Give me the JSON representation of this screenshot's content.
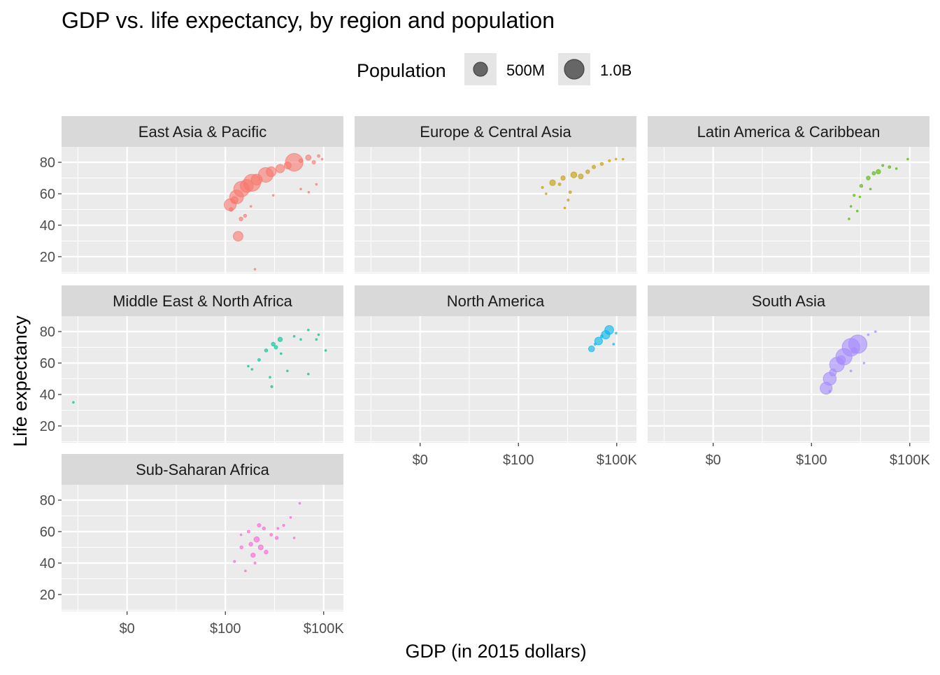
{
  "chart_data": {
    "type": "scatter",
    "title": "GDP vs. life expectancy, by region and population",
    "xlabel": "GDP (in 2015 dollars)",
    "ylabel": "Life expectancy",
    "x_scale": "log10",
    "x_ticks": [
      {
        "value": 0.1,
        "label": "$0"
      },
      {
        "value": 100,
        "label": "$100"
      },
      {
        "value": 100000,
        "label": "$100K"
      }
    ],
    "y_ticks": [
      {
        "value": 20,
        "label": "20"
      },
      {
        "value": 40,
        "label": "40"
      },
      {
        "value": 60,
        "label": "60"
      },
      {
        "value": 80,
        "label": "80"
      }
    ],
    "xlim": [
      0.001,
      400000
    ],
    "ylim": [
      9.3,
      89.8
    ],
    "grid": true,
    "legend": {
      "title": "Population",
      "position": "top",
      "entries": [
        {
          "label": "500M",
          "value": 500
        },
        {
          "label": "1.0B",
          "value": 1000
        }
      ]
    },
    "point_fields": [
      "gdp",
      "life_expectancy",
      "population_millions"
    ],
    "facets": [
      {
        "name": "East Asia & Pacific",
        "color": "#F8766D",
        "points": [
          [
            150,
            50,
            60
          ],
          [
            190,
            56,
            200
          ],
          [
            310,
            63,
            1000
          ],
          [
            650,
            67,
            1200
          ],
          [
            1700,
            72,
            900
          ],
          [
            4700,
            76,
            300
          ],
          [
            12600,
            80,
            1300
          ],
          [
            34000,
            83,
            120
          ],
          [
            70000,
            84,
            30
          ],
          [
            90000,
            82,
            5
          ],
          [
            140,
            53,
            600
          ],
          [
            220,
            58,
            800
          ],
          [
            450,
            65,
            700
          ],
          [
            900,
            69,
            500
          ],
          [
            2500,
            74,
            400
          ],
          [
            8000,
            78,
            200
          ],
          [
            20000,
            81,
            60
          ],
          [
            2900,
            59,
            5
          ],
          [
            20000,
            63,
            3
          ],
          [
            35000,
            61,
            2
          ],
          [
            60000,
            66,
            2
          ],
          [
            400,
            46,
            40
          ],
          [
            600,
            52,
            8
          ],
          [
            245,
            33,
            400
          ],
          [
            800,
            12,
            10
          ],
          [
            300,
            44,
            60
          ],
          [
            50000,
            80,
            50
          ]
        ]
      },
      {
        "name": "Europe & Central Asia",
        "color": "#C49A00",
        "points": [
          [
            540,
            64,
            20
          ],
          [
            1100,
            67,
            140
          ],
          [
            2300,
            70,
            80
          ],
          [
            4900,
            72,
            150
          ],
          [
            13000,
            74,
            60
          ],
          [
            35000,
            79,
            40
          ],
          [
            95000,
            82,
            10
          ],
          [
            155000,
            82,
            2
          ],
          [
            2600,
            51,
            10
          ],
          [
            3300,
            56,
            20
          ],
          [
            3800,
            61,
            30
          ],
          [
            700,
            60,
            5
          ],
          [
            8000,
            71,
            100
          ],
          [
            20000,
            77,
            50
          ],
          [
            60000,
            81,
            20
          ],
          [
            1800,
            66,
            30
          ]
        ]
      },
      {
        "name": "Latin America & Caribbean",
        "color": "#53B400",
        "points": [
          [
            1400,
            44,
            3
          ],
          [
            1600,
            52,
            10
          ],
          [
            2000,
            59,
            20
          ],
          [
            3300,
            65,
            40
          ],
          [
            5400,
            70,
            60
          ],
          [
            11000,
            74,
            80
          ],
          [
            24000,
            77,
            30
          ],
          [
            39000,
            76,
            5
          ],
          [
            87000,
            82,
            1
          ],
          [
            2500,
            49,
            5
          ],
          [
            6300,
            63,
            10
          ],
          [
            3000,
            58,
            8
          ],
          [
            8000,
            73,
            50
          ],
          [
            15000,
            78,
            20
          ]
        ]
      },
      {
        "name": "Middle East & North Africa",
        "color": "#00C094",
        "points": [
          [
            0.0023,
            35,
            1
          ],
          [
            650,
            56,
            10
          ],
          [
            1070,
            62,
            30
          ],
          [
            1750,
            68,
            40
          ],
          [
            2900,
            72,
            60
          ],
          [
            4700,
            75,
            80
          ],
          [
            2600,
            45,
            20
          ],
          [
            2300,
            51,
            10
          ],
          [
            12600,
            77,
            10
          ],
          [
            20000,
            75,
            5
          ],
          [
            34000,
            81,
            3
          ],
          [
            70000,
            78,
            2
          ],
          [
            115000,
            68,
            1
          ],
          [
            34000,
            53,
            2
          ],
          [
            7800,
            55,
            5
          ],
          [
            5000,
            66,
            8
          ],
          [
            3500,
            70,
            50
          ],
          [
            60000,
            75,
            2
          ],
          [
            500,
            58,
            5
          ]
        ]
      },
      {
        "name": "North America",
        "color": "#00B6EB",
        "points": [
          [
            17000,
            69,
            150
          ],
          [
            28000,
            74,
            250
          ],
          [
            46000,
            78,
            300
          ],
          [
            59000,
            81,
            330
          ],
          [
            96000,
            79,
            5
          ],
          [
            80000,
            72,
            1
          ],
          [
            35000,
            77,
            30
          ],
          [
            22000,
            72,
            20
          ]
        ]
      },
      {
        "name": "South Asia",
        "color": "#A58AFF",
        "points": [
          [
            280,
            44,
            600
          ],
          [
            360,
            50,
            700
          ],
          [
            600,
            59,
            900
          ],
          [
            980,
            64,
            1100
          ],
          [
            1600,
            70,
            1300
          ],
          [
            2600,
            72,
            1400
          ],
          [
            5400,
            78,
            5
          ],
          [
            9000,
            80,
            2
          ],
          [
            360,
            42,
            20
          ],
          [
            1600,
            55,
            1
          ],
          [
            450,
            54,
            200
          ],
          [
            800,
            62,
            300
          ],
          [
            2000,
            68,
            150
          ],
          [
            4000,
            60,
            2
          ]
        ]
      },
      {
        "name": "Sub-Saharan Africa",
        "color": "#FB61D7",
        "points": [
          [
            190,
            41,
            20
          ],
          [
            310,
            50,
            40
          ],
          [
            510,
            60,
            30
          ],
          [
            1070,
            64,
            50
          ],
          [
            1750,
            47,
            60
          ],
          [
            3700,
            56,
            40
          ],
          [
            6000,
            64,
            20
          ],
          [
            9800,
            69,
            10
          ],
          [
            12600,
            56,
            5
          ],
          [
            18600,
            78,
            1
          ],
          [
            410,
            35,
            10
          ],
          [
            700,
            45,
            80
          ],
          [
            900,
            55,
            120
          ],
          [
            1200,
            50,
            100
          ],
          [
            2500,
            58,
            30
          ],
          [
            600,
            52,
            60
          ],
          [
            1500,
            62,
            40
          ],
          [
            800,
            40,
            20
          ],
          [
            4000,
            62,
            15
          ],
          [
            300,
            58,
            10
          ]
        ]
      }
    ]
  }
}
